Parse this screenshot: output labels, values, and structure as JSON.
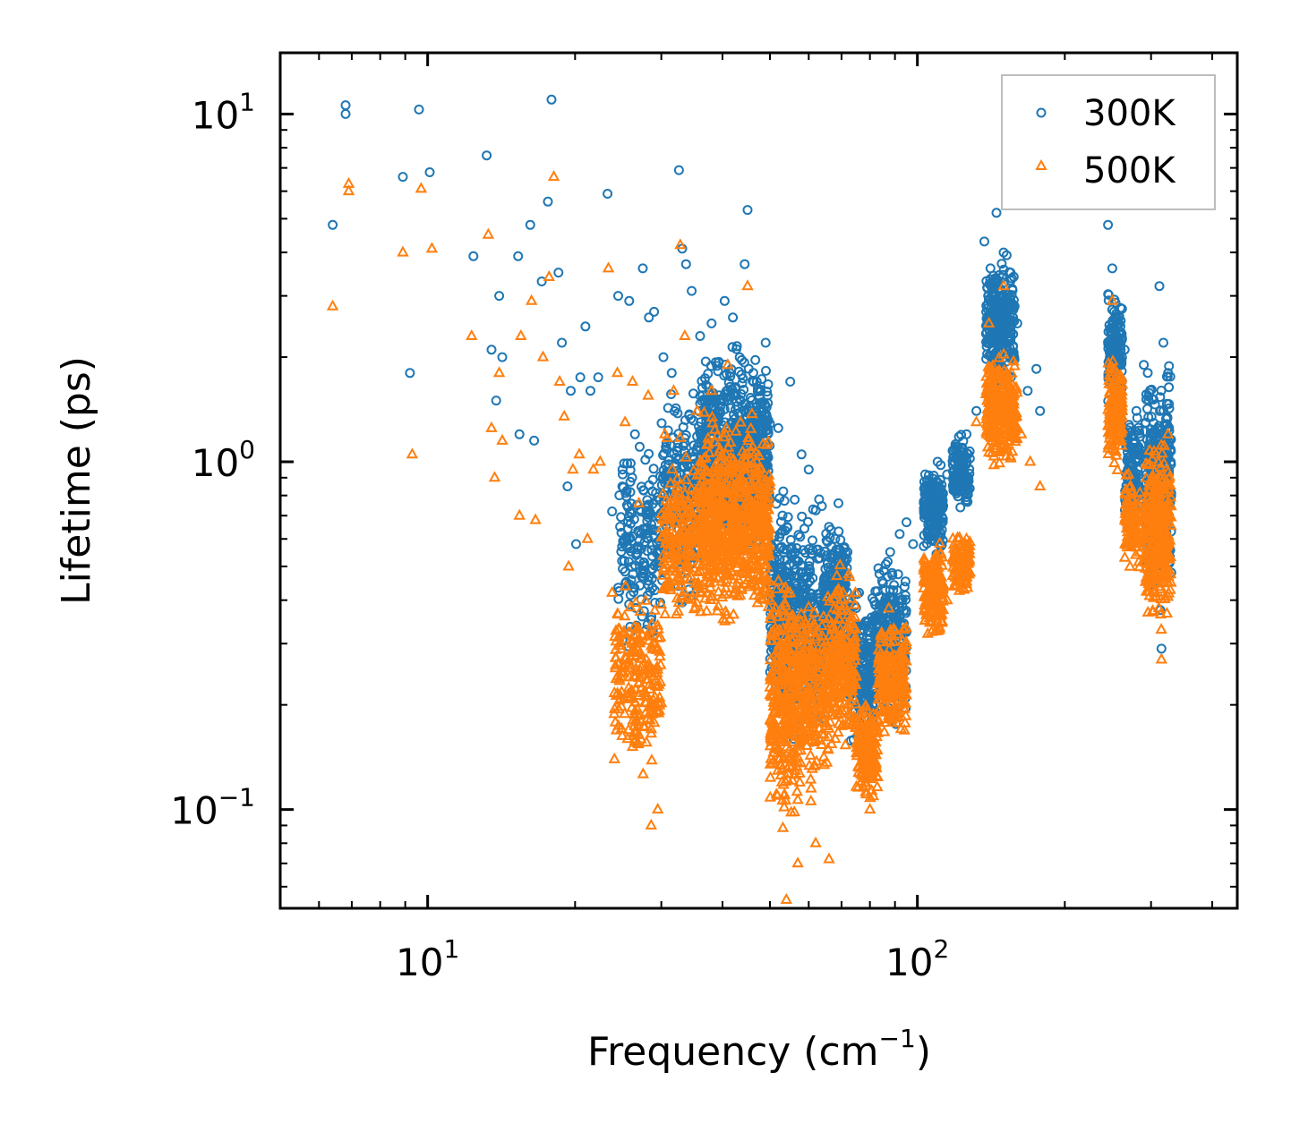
{
  "chart_data": {
    "type": "scatter",
    "title": "",
    "xlabel": "Frequency (cm",
    "xlabel_sup": "−1",
    "xlabel_tail": ")",
    "ylabel": "Lifetime (ps)",
    "xscale": "log",
    "yscale": "log",
    "xlim": [
      5.0,
      450.0
    ],
    "ylim": [
      0.052,
      15.0
    ],
    "grid": false,
    "legend_position": "top-right",
    "x_ticks": [
      {
        "value": 10,
        "base": "10",
        "exp": "1"
      },
      {
        "value": 100,
        "base": "10",
        "exp": "2"
      }
    ],
    "y_ticks": [
      {
        "value": 0.1,
        "base": "10",
        "exp": "−1"
      },
      {
        "value": 1,
        "base": "10",
        "exp": "0"
      },
      {
        "value": 10,
        "base": "10",
        "exp": "1"
      }
    ],
    "series": [
      {
        "name": "300K",
        "color": "#1f77b4",
        "marker": "circle",
        "points": [
          [
            6.4,
            4.8
          ],
          [
            6.8,
            10.6
          ],
          [
            6.8,
            10.0
          ],
          [
            8.9,
            6.6
          ],
          [
            9.2,
            1.8
          ],
          [
            9.6,
            10.3
          ],
          [
            10.1,
            6.8
          ],
          [
            12.4,
            3.9
          ],
          [
            13.2,
            7.6
          ],
          [
            13.5,
            2.1
          ],
          [
            13.8,
            1.5
          ],
          [
            14.0,
            3.0
          ],
          [
            14.2,
            2.0
          ],
          [
            15.3,
            3.9
          ],
          [
            15.4,
            1.2
          ],
          [
            16.2,
            4.8
          ],
          [
            16.5,
            1.15
          ],
          [
            17.1,
            3.3
          ],
          [
            17.6,
            5.6
          ],
          [
            17.9,
            11.0
          ],
          [
            18.5,
            3.5
          ],
          [
            18.8,
            2.2
          ],
          [
            19.3,
            0.85
          ],
          [
            19.6,
            1.6
          ],
          [
            20.1,
            0.58
          ],
          [
            20.5,
            1.75
          ],
          [
            21.0,
            2.45
          ],
          [
            21.5,
            1.6
          ],
          [
            22.3,
            1.75
          ],
          [
            23.3,
            5.9
          ],
          [
            23.8,
            0.72
          ],
          [
            24.5,
            3.0
          ],
          [
            25.0,
            0.95
          ],
          [
            25.8,
            2.9
          ],
          [
            26.5,
            1.2
          ],
          [
            27.5,
            3.6
          ],
          [
            28.3,
            2.6
          ],
          [
            29.0,
            2.7
          ],
          [
            30.3,
            2.0
          ],
          [
            31.5,
            1.8
          ],
          [
            32.6,
            6.9
          ],
          [
            33.1,
            4.1
          ],
          [
            33.7,
            3.7
          ],
          [
            34.6,
            3.1
          ],
          [
            36.0,
            2.3
          ],
          [
            38.0,
            2.5
          ],
          [
            40.4,
            2.9
          ],
          [
            42.0,
            2.6
          ],
          [
            44.4,
            3.7
          ],
          [
            45.0,
            5.3
          ],
          [
            47.0,
            1.7
          ],
          [
            49.0,
            2.2
          ],
          [
            52.0,
            1.25
          ],
          [
            55.0,
            1.7
          ],
          [
            58.0,
            1.05
          ],
          [
            60.0,
            0.95
          ],
          [
            63.0,
            0.78
          ],
          [
            66.0,
            0.65
          ],
          [
            69.0,
            0.76
          ],
          [
            72.0,
            0.55
          ],
          [
            76.0,
            0.42
          ],
          [
            80.0,
            0.31
          ],
          [
            84.0,
            0.26
          ],
          [
            88.0,
            0.55
          ],
          [
            92.0,
            0.62
          ],
          [
            95.0,
            0.67
          ],
          [
            98.0,
            0.58
          ],
          [
            105.0,
            0.85
          ],
          [
            110.0,
            1.0
          ],
          [
            115.0,
            0.92
          ],
          [
            120.0,
            1.1
          ],
          [
            126.0,
            1.2
          ],
          [
            132.0,
            1.4
          ],
          [
            137.0,
            4.3
          ],
          [
            141.0,
            3.6
          ],
          [
            145.0,
            5.2
          ],
          [
            150.0,
            4.0
          ],
          [
            155.0,
            3.5
          ],
          [
            160.0,
            2.5
          ],
          [
            168.0,
            1.6
          ],
          [
            175.0,
            1.85
          ],
          [
            178.0,
            1.4
          ],
          [
            245.0,
            4.8
          ],
          [
            250.0,
            3.6
          ],
          [
            258.0,
            2.6
          ],
          [
            265.0,
            2.1
          ],
          [
            272.0,
            1.1
          ],
          [
            280.0,
            1.4
          ],
          [
            290.0,
            1.9
          ],
          [
            298.0,
            1.0
          ],
          [
            305.0,
            1.2
          ],
          [
            312.0,
            3.2
          ],
          [
            318.0,
            2.2
          ],
          [
            325.0,
            1.8
          ],
          [
            330.0,
            0.48
          ],
          [
            315.0,
            0.29
          ]
        ],
        "clusters": [
          {
            "x": [
              24.5,
              30.0
            ],
            "y": [
              0.25,
              1.3
            ],
            "n": 180
          },
          {
            "x": [
              30.0,
              36.0
            ],
            "y": [
              0.35,
              1.9
            ],
            "n": 230
          },
          {
            "x": [
              36.0,
              50.0
            ],
            "y": [
              0.45,
              2.4
            ],
            "n": 720
          },
          {
            "x": [
              50.0,
              57.0
            ],
            "y": [
              0.14,
              1.0
            ],
            "n": 260
          },
          {
            "x": [
              57.0,
              64.0
            ],
            "y": [
              0.12,
              0.9
            ],
            "n": 200
          },
          {
            "x": [
              64.0,
              72.0
            ],
            "y": [
              0.22,
              0.75
            ],
            "n": 260
          },
          {
            "x": [
              72.0,
              82.0
            ],
            "y": [
              0.14,
              0.45
            ],
            "n": 230
          },
          {
            "x": [
              82.0,
              95.0
            ],
            "y": [
              0.16,
              0.62
            ],
            "n": 220
          },
          {
            "x": [
              103.0,
              113.0
            ],
            "y": [
              0.5,
              1.05
            ],
            "n": 190
          },
          {
            "x": [
              118.0,
              128.0
            ],
            "y": [
              0.7,
              1.25
            ],
            "n": 130
          },
          {
            "x": [
              138.0,
              158.0
            ],
            "y": [
              1.5,
              4.2
            ],
            "n": 290
          },
          {
            "x": [
              245.0,
              262.0
            ],
            "y": [
              1.4,
              3.2
            ],
            "n": 160
          },
          {
            "x": [
              265.0,
              285.0
            ],
            "y": [
              0.6,
              1.5
            ],
            "n": 110
          },
          {
            "x": [
              292.0,
              330.0
            ],
            "y": [
              0.35,
              2.1
            ],
            "n": 320
          }
        ]
      },
      {
        "name": "500K",
        "color": "#ff7f0e",
        "marker": "triangle",
        "points": [
          [
            6.4,
            2.8
          ],
          [
            6.9,
            6.3
          ],
          [
            6.9,
            6.0
          ],
          [
            8.9,
            4.0
          ],
          [
            9.3,
            1.05
          ],
          [
            9.7,
            6.1
          ],
          [
            10.2,
            4.1
          ],
          [
            12.3,
            2.3
          ],
          [
            13.3,
            4.5
          ],
          [
            13.5,
            1.25
          ],
          [
            13.7,
            0.9
          ],
          [
            14.0,
            1.8
          ],
          [
            14.2,
            1.15
          ],
          [
            15.4,
            0.7
          ],
          [
            15.5,
            2.3
          ],
          [
            16.3,
            2.9
          ],
          [
            16.6,
            0.68
          ],
          [
            17.2,
            2.0
          ],
          [
            17.7,
            3.4
          ],
          [
            18.1,
            6.6
          ],
          [
            18.6,
            1.7
          ],
          [
            19.0,
            1.35
          ],
          [
            19.4,
            0.5
          ],
          [
            19.8,
            0.95
          ],
          [
            20.4,
            1.05
          ],
          [
            21.2,
            0.6
          ],
          [
            21.8,
            0.95
          ],
          [
            22.5,
            1.0
          ],
          [
            23.4,
            3.6
          ],
          [
            23.8,
            0.42
          ],
          [
            24.4,
            1.8
          ],
          [
            25.3,
            1.3
          ],
          [
            26.2,
            1.7
          ],
          [
            27.0,
            0.76
          ],
          [
            28.2,
            1.55
          ],
          [
            28.6,
            0.09
          ],
          [
            29.5,
            0.1
          ],
          [
            30.5,
            1.2
          ],
          [
            31.8,
            1.6
          ],
          [
            32.8,
            4.2
          ],
          [
            33.5,
            2.3
          ],
          [
            35.5,
            1.4
          ],
          [
            38.0,
            1.6
          ],
          [
            41.0,
            1.9
          ],
          [
            45.0,
            3.2
          ],
          [
            47.0,
            1.0
          ],
          [
            54.0,
            0.055
          ],
          [
            57.0,
            0.07
          ],
          [
            62.0,
            0.08
          ],
          [
            66.0,
            0.072
          ],
          [
            80.0,
            0.1
          ],
          [
            90.0,
            0.24
          ],
          [
            105.0,
            0.32
          ],
          [
            115.0,
            0.4
          ],
          [
            126.0,
            0.6
          ],
          [
            132.0,
            1.3
          ],
          [
            140.0,
            2.5
          ],
          [
            150.0,
            3.2
          ],
          [
            163.0,
            1.2
          ],
          [
            170.0,
            1.0
          ],
          [
            178.0,
            0.85
          ],
          [
            250.0,
            2.9
          ],
          [
            262.0,
            1.4
          ],
          [
            280.0,
            0.75
          ],
          [
            300.0,
            0.55
          ],
          [
            315.0,
            0.27
          ],
          [
            325.0,
            1.2
          ]
        ],
        "clusters": [
          {
            "x": [
              24.0,
              30.0
            ],
            "y": [
              0.11,
              0.55
            ],
            "n": 220
          },
          {
            "x": [
              30.0,
              36.0
            ],
            "y": [
              0.3,
              1.2
            ],
            "n": 220
          },
          {
            "x": [
              36.0,
              50.0
            ],
            "y": [
              0.3,
              1.5
            ],
            "n": 720
          },
          {
            "x": [
              50.0,
              58.0
            ],
            "y": [
              0.08,
              0.55
            ],
            "n": 330
          },
          {
            "x": [
              58.0,
              66.0
            ],
            "y": [
              0.1,
              0.5
            ],
            "n": 220
          },
          {
            "x": [
              66.0,
              75.0
            ],
            "y": [
              0.13,
              0.55
            ],
            "n": 220
          },
          {
            "x": [
              75.0,
              83.0
            ],
            "y": [
              0.1,
              0.22
            ],
            "n": 190
          },
          {
            "x": [
              83.0,
              95.0
            ],
            "y": [
              0.14,
              0.4
            ],
            "n": 200
          },
          {
            "x": [
              103.0,
              113.0
            ],
            "y": [
              0.3,
              0.62
            ],
            "n": 180
          },
          {
            "x": [
              118.0,
              128.0
            ],
            "y": [
              0.4,
              0.65
            ],
            "n": 110
          },
          {
            "x": [
              138.0,
              160.0
            ],
            "y": [
              0.9,
              2.2
            ],
            "n": 300
          },
          {
            "x": [
              245.0,
              262.0
            ],
            "y": [
              0.9,
              2.2
            ],
            "n": 160
          },
          {
            "x": [
              265.0,
              285.0
            ],
            "y": [
              0.45,
              1.0
            ],
            "n": 110
          },
          {
            "x": [
              292.0,
              330.0
            ],
            "y": [
              0.3,
              1.3
            ],
            "n": 320
          }
        ]
      }
    ]
  }
}
